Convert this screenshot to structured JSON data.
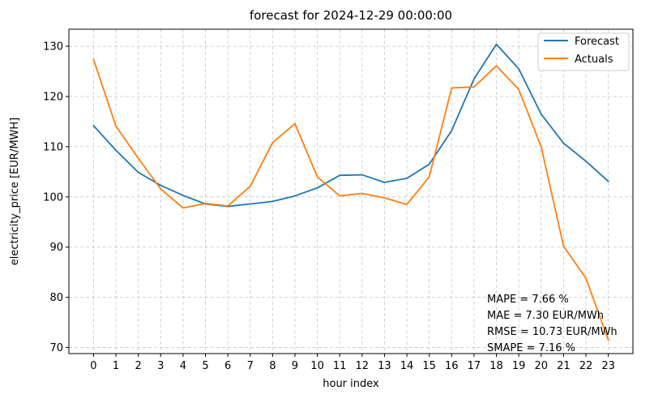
{
  "chart_data": {
    "type": "line",
    "title": "forecast for 2024-12-29 00:00:00",
    "xlabel": "hour index",
    "ylabel": "electricity_price [EUR/MWH]",
    "x": [
      0,
      1,
      2,
      3,
      4,
      5,
      6,
      7,
      8,
      9,
      10,
      11,
      12,
      13,
      14,
      15,
      16,
      17,
      18,
      19,
      20,
      21,
      22,
      23
    ],
    "x_ticks": [
      "0",
      "1",
      "2",
      "3",
      "4",
      "5",
      "6",
      "7",
      "8",
      "9",
      "10",
      "11",
      "12",
      "13",
      "14",
      "15",
      "16",
      "17",
      "18",
      "19",
      "20",
      "21",
      "22",
      "23"
    ],
    "xlim": [
      -1.1,
      24.1
    ],
    "ylim": [
      68.8,
      133.4
    ],
    "y_ticks": [
      70,
      80,
      90,
      100,
      110,
      120,
      130
    ],
    "y_tick_labels": [
      "70",
      "80",
      "90",
      "100",
      "110",
      "120",
      "130"
    ],
    "grid": true,
    "legend_position": "top-right",
    "series": [
      {
        "name": "Forecast",
        "color": "#1f77b4",
        "values": [
          114.2,
          109.3,
          104.9,
          102.3,
          100.3,
          98.6,
          98.1,
          98.6,
          99.1,
          100.2,
          101.8,
          104.3,
          104.4,
          102.9,
          103.7,
          106.5,
          113.2,
          123.5,
          130.4,
          125.5,
          116.5,
          110.7,
          107.1,
          103.1
        ]
      },
      {
        "name": "Actuals",
        "color": "#ff7f0e",
        "values": [
          127.4,
          114.1,
          107.7,
          101.6,
          97.8,
          98.7,
          98.2,
          102.1,
          110.8,
          114.6,
          104.0,
          100.2,
          100.7,
          99.8,
          98.5,
          104.0,
          121.7,
          121.9,
          126.1,
          121.4,
          110.0,
          90.2,
          83.8,
          71.5
        ]
      }
    ],
    "annotations": [
      "MAPE = 7.66 %",
      "MAE = 7.30 EUR/MWh",
      "RMSE = 10.73 EUR/MWh",
      "SMAPE = 7.16 %"
    ]
  }
}
